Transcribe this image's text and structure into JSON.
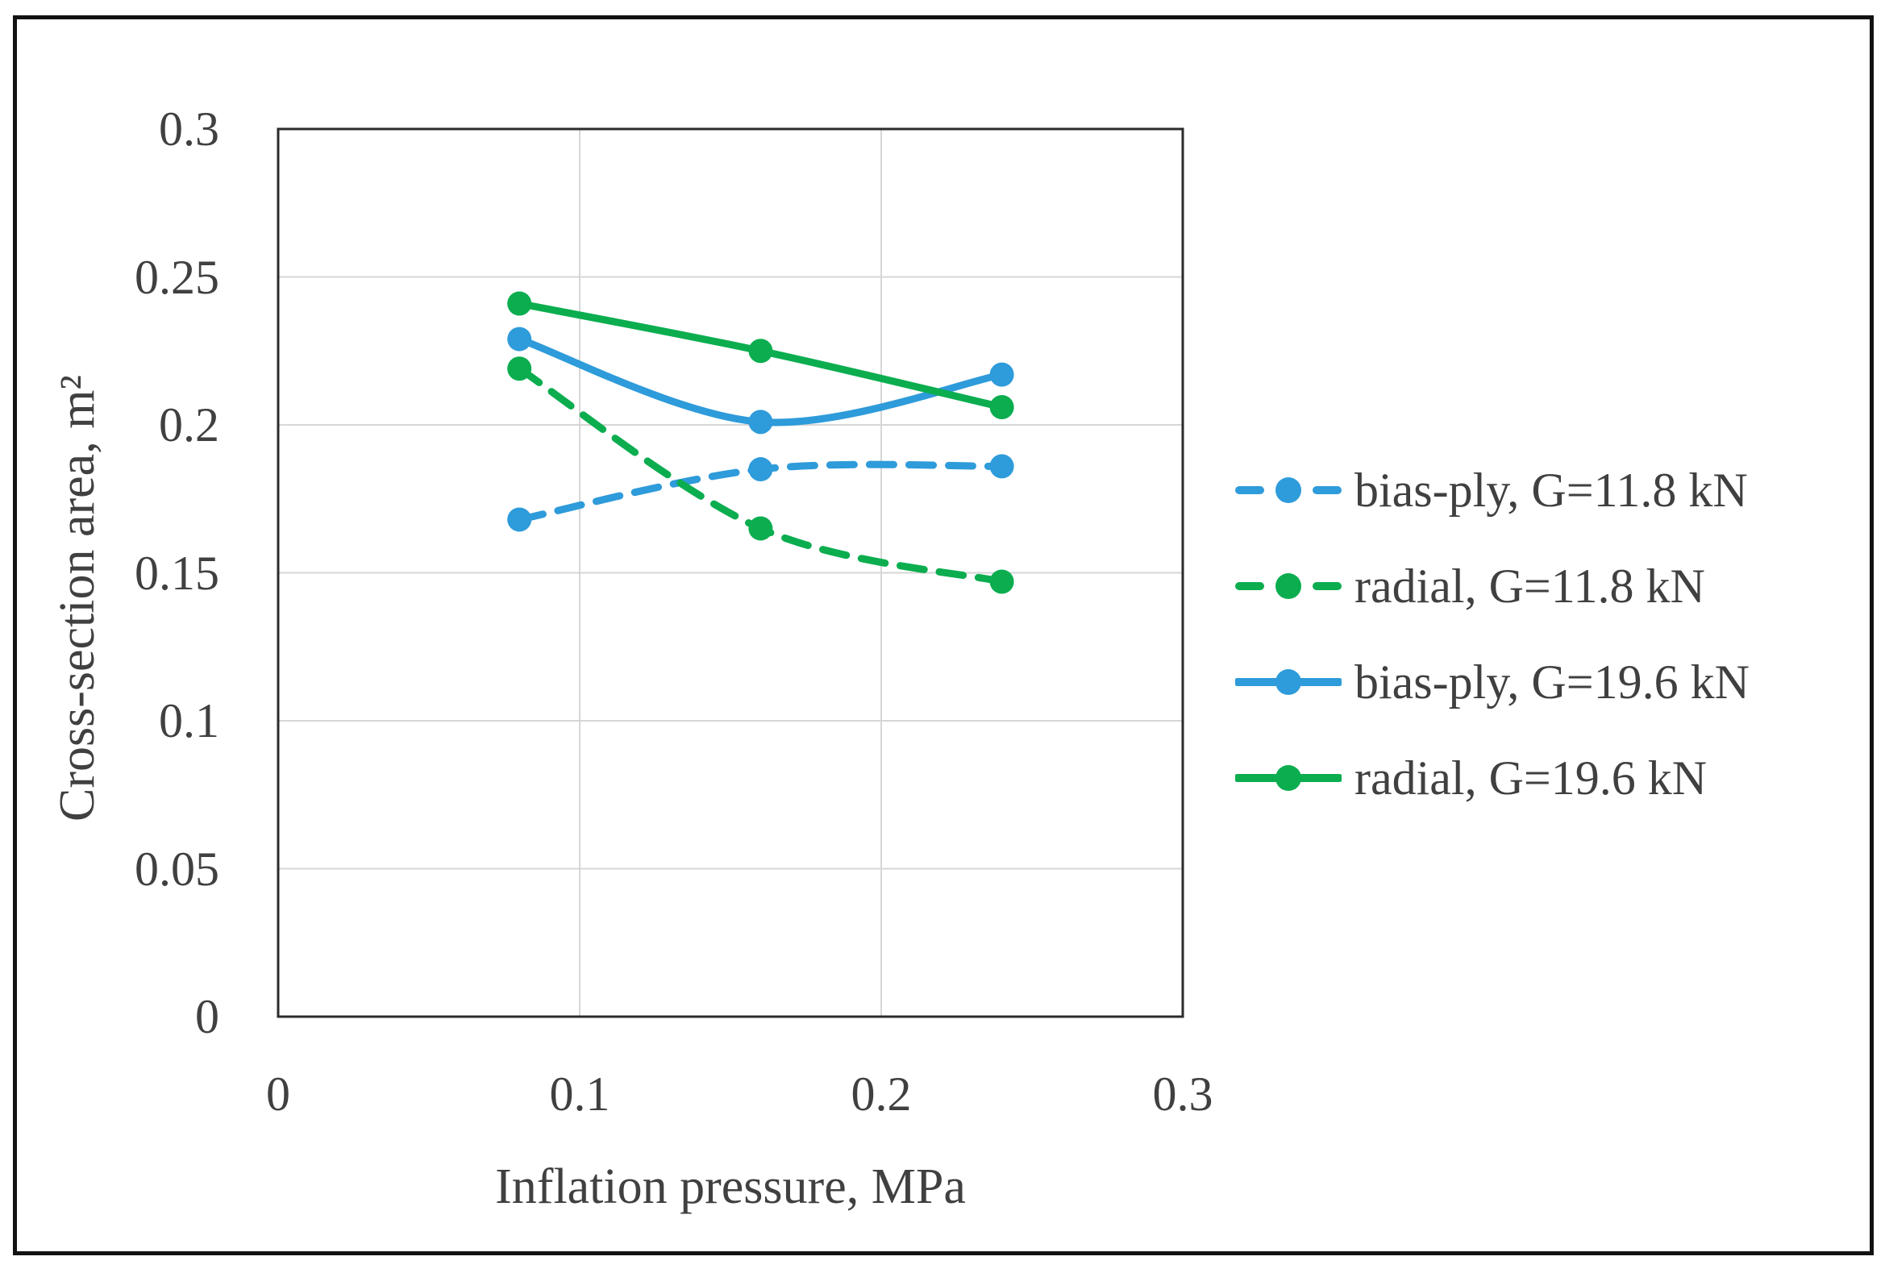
{
  "chart_data": {
    "type": "line",
    "title": "",
    "xlabel": "Inflation pressure, MPa",
    "ylabel": "Cross-section area, m²",
    "xlim": [
      0,
      0.3
    ],
    "ylim": [
      0,
      0.3
    ],
    "grid": true,
    "legend_position": "right",
    "x_tick_values": [
      0,
      0.1,
      0.2,
      0.3
    ],
    "x_tick_labels": [
      "0",
      "0.1",
      "0.2",
      "0.3"
    ],
    "y_tick_values": [
      0,
      0.05,
      0.1,
      0.15,
      0.2,
      0.25,
      0.3
    ],
    "y_tick_labels": [
      "0",
      "0.05",
      "0.1",
      "0.15",
      "0.2",
      "0.25",
      "0.3"
    ],
    "x": [
      0.08,
      0.16,
      0.24
    ],
    "series": [
      {
        "name": "bias-ply, G=11.8 kN",
        "color": "#2E9BDA",
        "line_style": "dashed",
        "marker": "circle",
        "values": [
          0.168,
          0.185,
          0.186
        ]
      },
      {
        "name": "radial, G=11.8 kN",
        "color": "#0BAD4F",
        "line_style": "dashed",
        "marker": "circle",
        "values": [
          0.219,
          0.165,
          0.147
        ]
      },
      {
        "name": "bias-ply, G=19.6 kN",
        "color": "#2E9BDA",
        "line_style": "solid",
        "marker": "circle",
        "values": [
          0.229,
          0.201,
          0.217
        ]
      },
      {
        "name": "radial, G=19.6 kN",
        "color": "#0BAD4F",
        "line_style": "solid",
        "marker": "circle",
        "values": [
          0.241,
          0.225,
          0.206
        ]
      }
    ],
    "colors": {
      "blue": "#2E9BDA",
      "green": "#0BAD4F",
      "gridline": "#D6D6D6",
      "plot_border": "#2B2B2B",
      "figure_border": "#121212",
      "text": "#404040"
    }
  }
}
